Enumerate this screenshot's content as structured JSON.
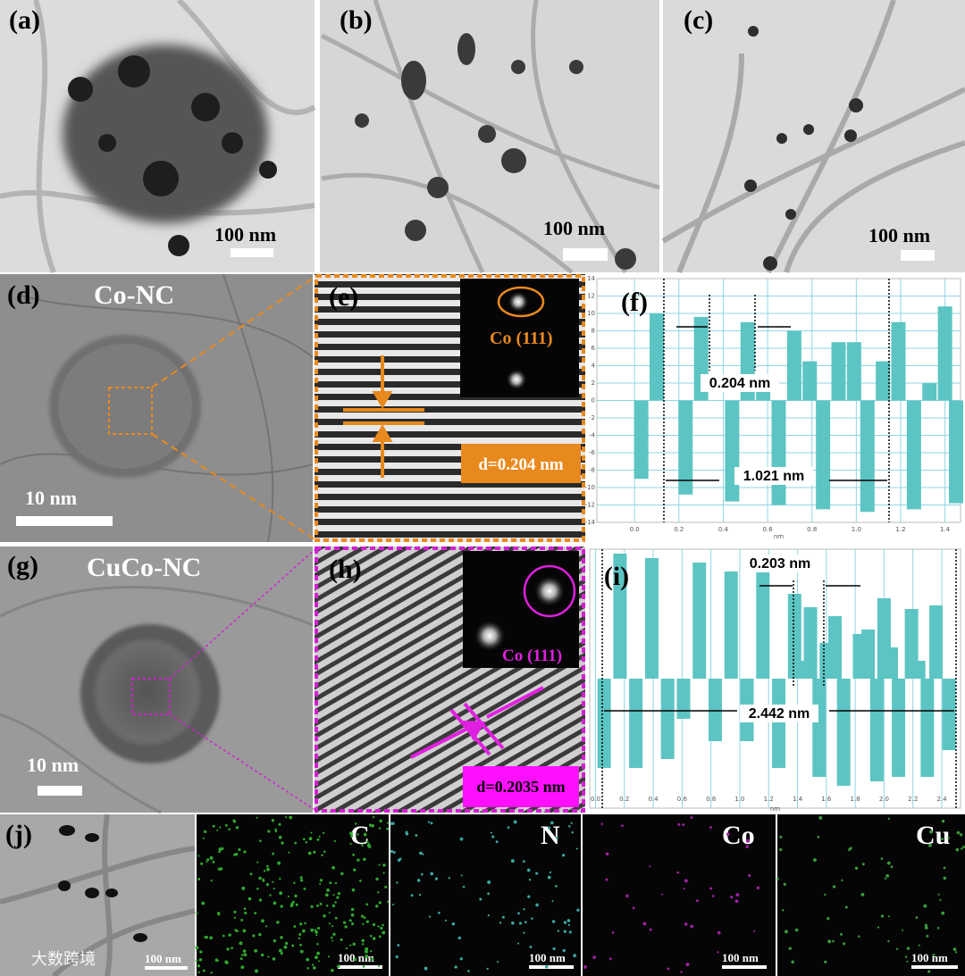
{
  "panels": [
    {
      "label": "(a)",
      "scale_bar": "100 nm"
    },
    {
      "label": "(b)",
      "scale_bar": "100 nm"
    },
    {
      "label": "(c)",
      "scale_bar": "100 nm"
    },
    {
      "label": "(d)",
      "title": "Co-NC",
      "scale_bar": "10 nm"
    },
    {
      "label": "(e)",
      "inset_label": "Co (111)",
      "spacing": "d=0.204 nm"
    },
    {
      "label": "(g)",
      "title": "CuCo-NC",
      "scale_bar": "10 nm"
    },
    {
      "label": "(h)",
      "inset_label": "Co (111)",
      "spacing": "d=0.2035 nm"
    },
    {
      "label": "(j)",
      "scale_bar": "100 nm"
    },
    {
      "label": "C",
      "scale_bar": "100 nm"
    },
    {
      "label": "N",
      "scale_bar": "100 nm"
    },
    {
      "label": "Co",
      "scale_bar": "100 nm"
    },
    {
      "label": "Cu",
      "scale_bar": "100 nm"
    }
  ],
  "watermark": "大数跨境",
  "chart_data": [
    {
      "type": "bar",
      "label": "(f)",
      "x_label": "nm",
      "color": "#5cc5c3",
      "grid": true,
      "annotations": [
        "0.204 nm",
        "1.021 nm"
      ],
      "x": [
        0.03,
        0.1,
        0.23,
        0.3,
        0.44,
        0.51,
        0.58,
        0.65,
        0.72,
        0.79,
        0.85,
        0.92,
        0.99,
        1.05,
        1.12,
        1.19,
        1.26,
        1.33,
        1.4,
        1.45
      ],
      "values": [
        -9,
        10,
        -10.8,
        9.6,
        -11.6,
        9,
        3,
        -12,
        8,
        4.5,
        -12.5,
        6.7,
        6.7,
        -12.8,
        4.5,
        9,
        -12.5,
        2,
        10.8,
        -11.8
      ],
      "xlim": [
        -0.17,
        1.47
      ],
      "ylim": [
        -14,
        14
      ],
      "xticks": [
        {
          "value": 0,
          "label": "0.0"
        },
        0.2,
        0.4,
        0.6,
        0.8,
        {
          "value": 1,
          "label": "1.0"
        },
        1.2,
        1.4
      ],
      "yticks": [
        -14,
        -12,
        -10,
        -8,
        -6,
        -4,
        -2,
        0,
        2,
        4,
        6,
        8,
        10,
        12,
        14
      ]
    },
    {
      "type": "bar",
      "label": "(i)",
      "x_label": "nm",
      "color": "#5cc5c3",
      "grid": true,
      "annotations": [
        "0.203 nm",
        "2.442 nm"
      ],
      "x": [
        0.06,
        0.17,
        0.28,
        0.39,
        0.5,
        0.61,
        0.72,
        0.83,
        0.94,
        1.05,
        1.16,
        1.27,
        1.38,
        1.44,
        1.49,
        1.55,
        1.6,
        1.66,
        1.72,
        1.83,
        1.89,
        1.95,
        2.0,
        2.05,
        2.1,
        2.19,
        2.24,
        2.3,
        2.36,
        2.45
      ],
      "values": [
        -10,
        14,
        -10,
        13.5,
        -9,
        -4.5,
        13,
        -7,
        12,
        -7,
        13,
        -10,
        9.5,
        2,
        8,
        -11,
        4,
        7,
        -12,
        5,
        5.5,
        -11.5,
        9,
        3.5,
        -11,
        7.8,
        2,
        -11,
        8.2,
        -8
      ],
      "xlim": [
        -0.04,
        2.53
      ],
      "ylim": [
        -14.5,
        14.5
      ],
      "xticks": [
        {
          "value": 0,
          "label": "0.0"
        },
        0.2,
        0.4,
        0.6,
        0.8,
        {
          "value": 1,
          "label": "1.0"
        },
        1.2,
        1.4,
        1.6,
        1.8,
        {
          "value": 2,
          "label": "2.0"
        },
        2.2,
        2.4
      ]
    }
  ]
}
